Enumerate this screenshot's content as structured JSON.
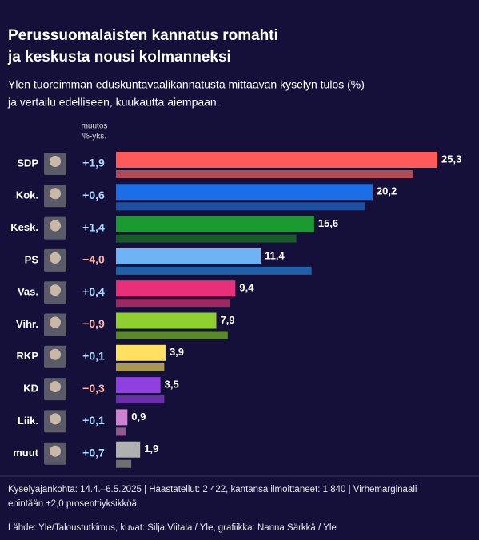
{
  "chart_data": {
    "type": "bar",
    "title_lines": [
      "Perussuomalaisten kannatus romahti",
      "ja keskusta nousi kolmanneksi"
    ],
    "subtitle_lines": [
      "Ylen tuoreimman eduskuntavaalikannatusta mittaavan kyselyn tulos (%)",
      "ja vertailu edelliseen, kuukautta aiempaan."
    ],
    "change_header": [
      "muutos",
      "%-yks."
    ],
    "categories": [
      "SDP",
      "Kok.",
      "Kesk.",
      "PS",
      "Vas.",
      "Vihr.",
      "RKP",
      "KD",
      "Liik.",
      "muut"
    ],
    "values": [
      25.3,
      20.2,
      15.6,
      11.4,
      9.4,
      7.9,
      3.9,
      3.5,
      0.9,
      1.9
    ],
    "value_labels": [
      "25,3",
      "20,2",
      "15,6",
      "11,4",
      "9,4",
      "7,9",
      "3,9",
      "3,5",
      "0,9",
      "1,9"
    ],
    "previous_values": [
      23.4,
      19.6,
      14.2,
      15.4,
      9.0,
      8.8,
      3.8,
      3.8,
      0.8,
      1.2
    ],
    "changes": [
      1.9,
      0.6,
      1.4,
      -4.0,
      0.4,
      -0.9,
      0.1,
      -0.3,
      0.1,
      0.7
    ],
    "change_labels": [
      "+1,9",
      "+0,6",
      "+1,4",
      "−4,0",
      "+0,4",
      "−0,9",
      "+0,1",
      "−0,3",
      "+0,1",
      "+0,7"
    ],
    "colors": [
      "#ff5a5a",
      "#1b6ee6",
      "#1a9a30",
      "#6db4f5",
      "#e8307a",
      "#8fd030",
      "#ffe060",
      "#9040e0",
      "#d080d0",
      "#b0b0b0"
    ],
    "previous_colors": [
      "#b04a55",
      "#1f4fa0",
      "#1a5a2a",
      "#2060a8",
      "#a02860",
      "#5a8a28",
      "#a89850",
      "#6a30a8",
      "#905a90",
      "#707070"
    ],
    "footnote_lines": [
      "Kyselyajankohta: 14.4.–6.5.2025 | Haastatellut: 2 422, kantansa ilmoittaneet: 1 840 | Virhemarginaali",
      "enintään ±2,0 prosenttiyksikköä"
    ],
    "source": "Lähde: Yle/Taloustutkimus, kuvat: Silja Viitala / Yle, grafiikka: Nanna Särkkä / Yle"
  }
}
